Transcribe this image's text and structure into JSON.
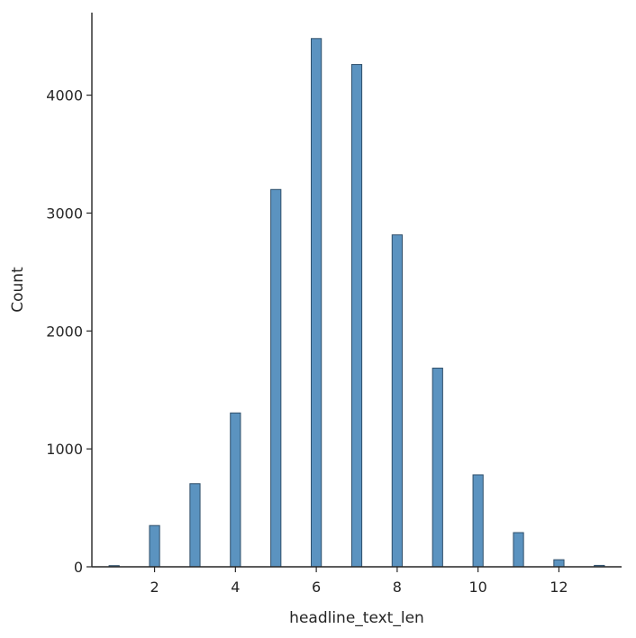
{
  "chart_data": {
    "type": "bar",
    "title": "",
    "xlabel": "headline_text_len",
    "ylabel": "Count",
    "x": [
      1,
      2,
      3,
      4,
      5,
      6,
      7,
      8,
      9,
      10,
      11,
      12,
      13
    ],
    "values": [
      10,
      350,
      705,
      1305,
      3200,
      4480,
      4260,
      2815,
      1685,
      780,
      290,
      60,
      12
    ],
    "xlim": [
      0.45,
      13.55
    ],
    "ylim": [
      0,
      4700
    ],
    "xticks": [
      2,
      4,
      6,
      8,
      10,
      12
    ],
    "yticks": [
      0,
      1000,
      2000,
      3000,
      4000
    ],
    "bar_width": 0.25,
    "grid": false,
    "colors": {
      "bar_fill": "#5b93c0",
      "bar_edge": "#2f4f6a",
      "axis": "#262626"
    }
  }
}
